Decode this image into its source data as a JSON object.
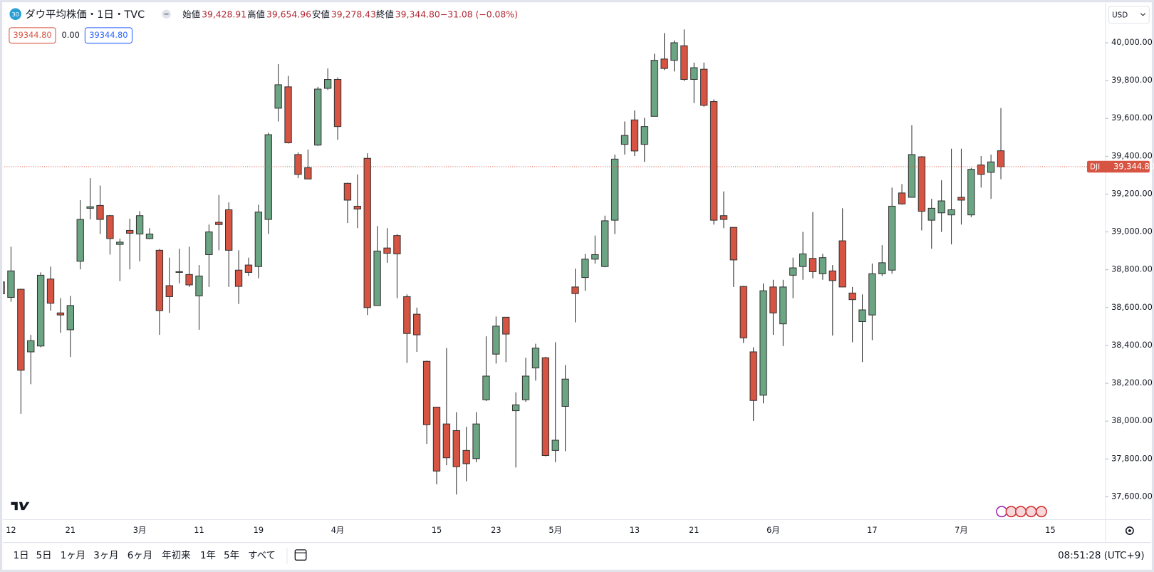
{
  "header": {
    "badge": "30",
    "title": "ダウ平均株価・1日・TVC",
    "ohlc": [
      {
        "label": "始値",
        "value": "39,428.91"
      },
      {
        "label": "高値",
        "value": "39,654.96"
      },
      {
        "label": "安値",
        "value": "39,278.43"
      },
      {
        "label": "終値",
        "value": "39,344.80"
      }
    ],
    "change": "−31.08 (−0.08%)",
    "bid": "39344.80",
    "spread": "0.00",
    "ask": "39344.80"
  },
  "chart_data": {
    "type": "candlestick",
    "categories": [
      null,
      "12",
      null,
      null,
      null,
      null,
      null,
      "21",
      null,
      null,
      null,
      null,
      null,
      null,
      "3月",
      null,
      null,
      null,
      null,
      null,
      "11",
      null,
      null,
      null,
      null,
      null,
      "19",
      null,
      null,
      null,
      null,
      null,
      null,
      null,
      "4月",
      null,
      null,
      null,
      null,
      null,
      null,
      null,
      null,
      null,
      "15",
      null,
      null,
      null,
      null,
      null,
      "23",
      null,
      null,
      null,
      null,
      null,
      "5月",
      null,
      null,
      null,
      null,
      null,
      null,
      null,
      "13",
      null,
      null,
      null,
      null,
      null,
      "21",
      null,
      null,
      null,
      null,
      null,
      null,
      null,
      "6月",
      null,
      null,
      null,
      null,
      null,
      null,
      null,
      null,
      null,
      "17",
      null,
      null,
      null,
      null,
      null,
      null,
      null,
      null,
      "7月",
      null,
      null,
      null,
      null,
      null,
      null,
      null,
      null,
      "15"
    ],
    "open": [
      38736,
      38654,
      38697,
      38366,
      38397,
      38751,
      38572,
      38483,
      38845,
      39125,
      39140,
      39086,
      38934,
      39008,
      38989,
      38965,
      38903,
      38716,
      38786,
      38775,
      38662,
      38880,
      39051,
      39117,
      38798,
      38825,
      38817,
      39066,
      39654,
      39767,
      39409,
      39339,
      39459,
      39759,
      39806,
      39257,
      39136,
      39389,
      38611,
      38915,
      38981,
      38658,
      38565,
      38316,
      38074,
      37985,
      37950,
      37845,
      37802,
      38113,
      38354,
      38549,
      38055,
      38113,
      38281,
      38335,
      37845,
      38078,
      38709,
      38759,
      38856,
      38817,
      39062,
      39463,
      39592,
      39463,
      39611,
      39914,
      39907,
      39984,
      39806,
      39860,
      39689,
      39086,
      39024,
      38712,
      38366,
      38137,
      38709,
      38514,
      38771,
      38817,
      38860,
      38779,
      38794,
      38953,
      38677,
      38526,
      38561,
      38779,
      38798,
      39206,
      39183,
      39397,
      39062,
      39101,
      39090,
      39183,
      39090,
      39354,
      39315,
      39428.91,
      null,
      null,
      null,
      null,
      null
    ],
    "high": [
      38750,
      38922,
      38700,
      38456,
      38786,
      38817,
      38650,
      38662,
      39168,
      39284,
      39245,
      39090,
      38965,
      39070,
      39110,
      39020,
      38910,
      38864,
      38911,
      38922,
      38825,
      39039,
      39195,
      39156,
      38903,
      38864,
      39144,
      39525,
      39887,
      39825,
      39420,
      39436,
      39767,
      39864,
      39817,
      39260,
      39304,
      39416,
      39031,
      39020,
      38989,
      38670,
      38600,
      38320,
      38075,
      38386,
      38047,
      37970,
      38047,
      38448,
      38553,
      38550,
      38152,
      38335,
      38409,
      38340,
      38417,
      38296,
      38806,
      38884,
      38981,
      39086,
      39409,
      39584,
      39642,
      39603,
      39942,
      40051,
      40012,
      40070,
      39895,
      39895,
      39700,
      39214,
      39025,
      38715,
      38390,
      38728,
      38747,
      38747,
      38864,
      39000,
      39105,
      38884,
      38825,
      39125,
      38709,
      38670,
      38833,
      38930,
      39234,
      39253,
      39564,
      39401,
      39175,
      39273,
      39440,
      39440,
      39339,
      39401,
      39409,
      39654.96,
      null,
      null,
      null,
      null,
      null
    ],
    "low": [
      38670,
      38631,
      38039,
      38195,
      38390,
      38584,
      38467,
      38339,
      38802,
      39066,
      38989,
      38880,
      38740,
      38802,
      38845,
      38961,
      38456,
      38572,
      38728,
      38709,
      38483,
      38709,
      38903,
      38709,
      38619,
      38767,
      38755,
      38989,
      39584,
      39467,
      39284,
      39280,
      39455,
      39751,
      39487,
      39047,
      39020,
      38561,
      38611,
      38837,
      38650,
      38308,
      38366,
      37880,
      37666,
      37767,
      37612,
      37682,
      37783,
      38106,
      38304,
      38312,
      37755,
      38102,
      38214,
      37814,
      37783,
      37841,
      38522,
      38689,
      38833,
      38813,
      38989,
      39409,
      39401,
      39370,
      39611,
      39856,
      39848,
      39798,
      39681,
      39662,
      39039,
      39020,
      38709,
      38413,
      38001,
      38094,
      38456,
      38397,
      38650,
      38747,
      38755,
      38747,
      38452,
      38709,
      38417,
      38312,
      38428,
      38767,
      38779,
      39144,
      39183,
      39008,
      38911,
      39000,
      38934,
      39039,
      39078,
      39234,
      39175,
      39278.43,
      null,
      null,
      null,
      null,
      null
    ],
    "close": [
      38673,
      38794,
      38269,
      38425,
      38771,
      38623,
      38561,
      38611,
      39066,
      39133,
      39066,
      38965,
      38946,
      38993,
      39086,
      38989,
      38584,
      38658,
      38790,
      38720,
      38767,
      39000,
      39039,
      38903,
      38712,
      38786,
      39105,
      39514,
      39778,
      39471,
      39304,
      39280,
      39755,
      39806,
      39557,
      39168,
      39121,
      38600,
      38899,
      38887,
      38884,
      38463,
      38456,
      37981,
      37736,
      37806,
      37759,
      37775,
      37985,
      38238,
      38502,
      38460,
      38086,
      38238,
      38386,
      37818,
      37899,
      38222,
      38674,
      38856,
      38880,
      39059,
      39385,
      39510,
      39428,
      39557,
      39907,
      39864,
      40000,
      39806,
      39868,
      39669,
      39062,
      39066,
      38852,
      38440,
      38109,
      38689,
      38572,
      38709,
      38810,
      38884,
      38790,
      38864,
      38743,
      38709,
      38642,
      38588,
      38779,
      38837,
      39136,
      39148,
      39409,
      39109,
      39125,
      39164,
      39117,
      39168,
      39331,
      39304,
      39370,
      39344.8,
      null,
      null,
      null,
      null,
      null
    ],
    "up_color": "#6ba583",
    "down_color": "#d75442",
    "ylim": [
      37483,
      40206
    ],
    "yticks": [
      {
        "value": 37600,
        "label": "37,600.00"
      },
      {
        "value": 37800,
        "label": "37,800.00"
      },
      {
        "value": 38000,
        "label": "38,000.00"
      },
      {
        "value": 38200,
        "label": "38,200.00"
      },
      {
        "value": 38400,
        "label": "38,400.00"
      },
      {
        "value": 38600,
        "label": "38,600.00"
      },
      {
        "value": 38800,
        "label": "38,800.00"
      },
      {
        "value": 39000,
        "label": "39,000.00"
      },
      {
        "value": 39200,
        "label": "39,200.00"
      },
      {
        "value": 39400,
        "label": "39,400.00"
      },
      {
        "value": 39600,
        "label": "39,600.00"
      },
      {
        "value": 39800,
        "label": "39,800.00"
      },
      {
        "value": 40000,
        "label": "40,000.00"
      }
    ],
    "grid": false,
    "last_price": {
      "symbol": "DJI",
      "label": "39,344.80"
    }
  },
  "toolbar": {
    "currency": "USD",
    "ranges": [
      "1日",
      "5日",
      "1ヶ月",
      "3ヶ月",
      "6ヶ月",
      "年初来",
      "1年",
      "5年",
      "すべて"
    ],
    "clock": "08:51:28 (UTC+9)"
  }
}
